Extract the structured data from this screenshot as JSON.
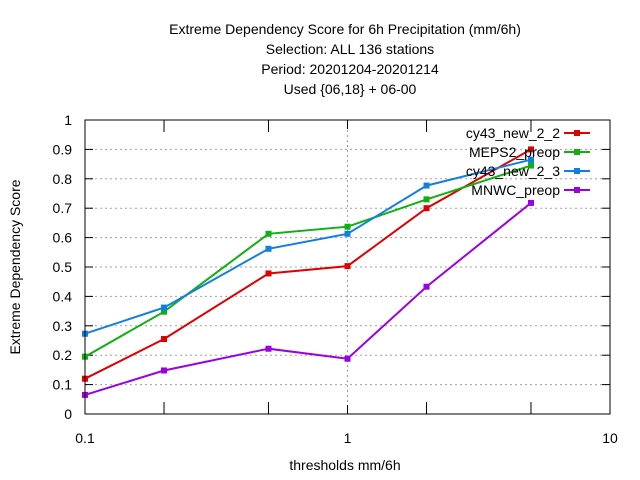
{
  "chart_data": {
    "type": "line",
    "title_lines": [
      "Extreme Dependency Score  for 6h Precipitation (mm/6h)",
      "Selection: ALL    136 stations",
      "Period: 20201204-20201214",
      "Used {06,18} + 06-00"
    ],
    "xlabel": "thresholds mm/6h",
    "ylabel": "Extreme Dependency Score",
    "x_scale": "log",
    "xlim": [
      0.1,
      10
    ],
    "ylim": [
      0,
      1
    ],
    "x_ticks": [
      {
        "value": 0.1,
        "label": "0.1"
      },
      {
        "value": 1,
        "label": "1"
      },
      {
        "value": 10,
        "label": "10"
      }
    ],
    "x_minor_ticks": [
      0.2,
      0.5,
      2,
      5
    ],
    "y_ticks": [
      {
        "value": 0,
        "label": "0"
      },
      {
        "value": 0.1,
        "label": "0.1"
      },
      {
        "value": 0.2,
        "label": "0.2"
      },
      {
        "value": 0.3,
        "label": "0.3"
      },
      {
        "value": 0.4,
        "label": "0.4"
      },
      {
        "value": 0.5,
        "label": "0.5"
      },
      {
        "value": 0.6,
        "label": "0.6"
      },
      {
        "value": 0.7,
        "label": "0.7"
      },
      {
        "value": 0.8,
        "label": "0.8"
      },
      {
        "value": 0.9,
        "label": "0.9"
      },
      {
        "value": 1,
        "label": "1"
      }
    ],
    "grid": true,
    "legend_position": "top-right",
    "x": [
      0.1,
      0.2,
      0.5,
      1,
      2,
      5
    ],
    "series": [
      {
        "name": "cy43_new_2_2",
        "color": "#e00000",
        "values": [
          0.12,
          0.255,
          0.478,
          0.503,
          0.7,
          0.9
        ]
      },
      {
        "name": "MEPS2_preop",
        "color": "#10b010",
        "values": [
          0.195,
          0.348,
          0.613,
          0.637,
          0.73,
          0.845
        ]
      },
      {
        "name": "cy43_new_2_3",
        "color": "#1080e0",
        "values": [
          0.273,
          0.362,
          0.562,
          0.613,
          0.777,
          0.865
        ]
      },
      {
        "name": "MNWC_preop",
        "color": "#9b00e0",
        "values": [
          0.065,
          0.148,
          0.222,
          0.188,
          0.433,
          0.718
        ]
      }
    ]
  }
}
